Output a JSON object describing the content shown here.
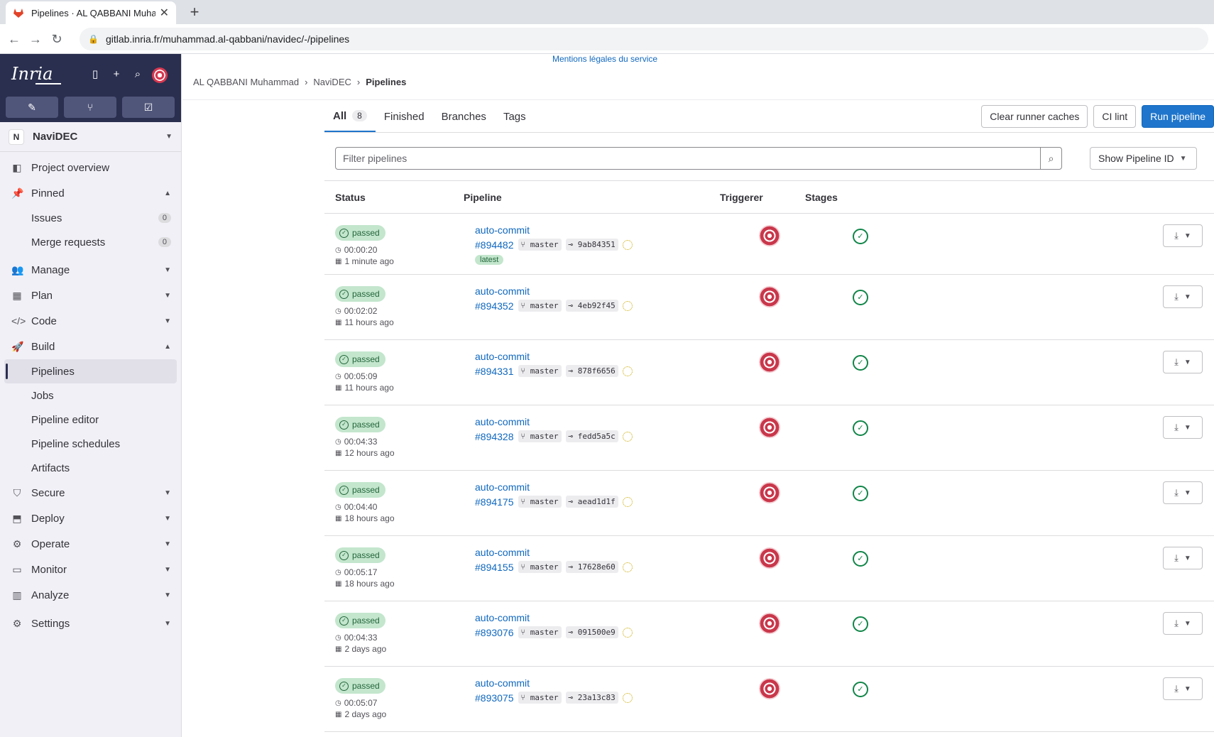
{
  "browser": {
    "tab_title": "Pipelines · AL QABBANI Muhamm",
    "url": "gitlab.inria.fr/muhammad.al-qabbani/navidec/-/pipelines"
  },
  "brand": {
    "logo_text": "Inria"
  },
  "sidebar": {
    "project_badge": "N",
    "project_name": "NaviDEC",
    "project_overview": "Project overview",
    "pinned": "Pinned",
    "issues": {
      "label": "Issues",
      "count": "0"
    },
    "merge_requests": {
      "label": "Merge requests",
      "count": "0"
    },
    "manage": "Manage",
    "plan": "Plan",
    "code": "Code",
    "build": "Build",
    "build_items": [
      "Pipelines",
      "Jobs",
      "Pipeline editor",
      "Pipeline schedules",
      "Artifacts"
    ],
    "secure": "Secure",
    "deploy": "Deploy",
    "operate": "Operate",
    "monitor": "Monitor",
    "analyze": "Analyze",
    "settings": "Settings"
  },
  "header": {
    "legal": "Mentions légales du service",
    "breadcrumb": [
      "AL QABBANI Muhammad",
      "NaviDEC",
      "Pipelines"
    ]
  },
  "tabs": {
    "all": "All",
    "all_count": "8",
    "finished": "Finished",
    "branches": "Branches",
    "tags": "Tags"
  },
  "actions": {
    "clear_caches": "Clear runner caches",
    "ci_lint": "CI lint",
    "run_pipeline": "Run pipeline"
  },
  "filter": {
    "placeholder": "Filter pipelines",
    "show_id": "Show Pipeline ID"
  },
  "table": {
    "headers": [
      "Status",
      "Pipeline",
      "Triggerer",
      "Stages"
    ],
    "rows": [
      {
        "status": "passed",
        "duration": "00:00:20",
        "finished": "1 minute ago",
        "title": "auto-commit",
        "id": "#894482",
        "branch": "master",
        "commit": "9ab84351",
        "latest": "latest"
      },
      {
        "status": "passed",
        "duration": "00:02:02",
        "finished": "11 hours ago",
        "title": "auto-commit",
        "id": "#894352",
        "branch": "master",
        "commit": "4eb92f45"
      },
      {
        "status": "passed",
        "duration": "00:05:09",
        "finished": "11 hours ago",
        "title": "auto-commit",
        "id": "#894331",
        "branch": "master",
        "commit": "878f6656"
      },
      {
        "status": "passed",
        "duration": "00:04:33",
        "finished": "12 hours ago",
        "title": "auto-commit",
        "id": "#894328",
        "branch": "master",
        "commit": "fedd5a5c"
      },
      {
        "status": "passed",
        "duration": "00:04:40",
        "finished": "18 hours ago",
        "title": "auto-commit",
        "id": "#894175",
        "branch": "master",
        "commit": "aead1d1f"
      },
      {
        "status": "passed",
        "duration": "00:05:17",
        "finished": "18 hours ago",
        "title": "auto-commit",
        "id": "#894155",
        "branch": "master",
        "commit": "17628e60"
      },
      {
        "status": "passed",
        "duration": "00:04:33",
        "finished": "2 days ago",
        "title": "auto-commit",
        "id": "#893076",
        "branch": "master",
        "commit": "091500e9"
      },
      {
        "status": "passed",
        "duration": "00:05:07",
        "finished": "2 days ago",
        "title": "auto-commit",
        "id": "#893075",
        "branch": "master",
        "commit": "23a13c83"
      }
    ]
  },
  "icons": {
    "favicon": "gitlab-fox-icon",
    "stage_status": "check-circle-icon",
    "download": "download-icon"
  },
  "colors": {
    "sidebar_top": "#2a2f4f",
    "primary": "#1f75cb",
    "success_bg": "#c3e6cd",
    "success_fg": "#24663b"
  }
}
